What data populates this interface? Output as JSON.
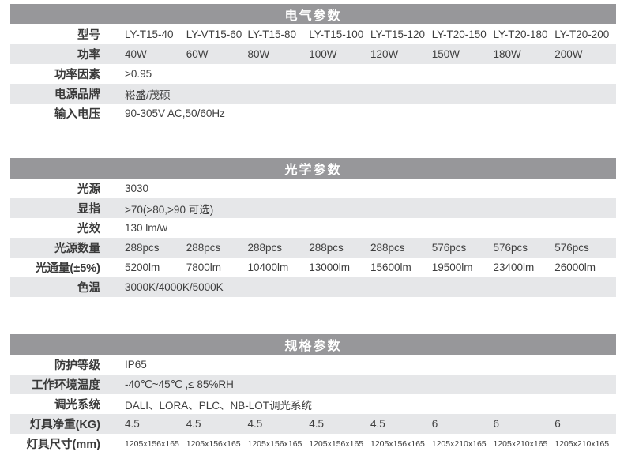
{
  "colors": {
    "section_header_bg": "#97979a",
    "section_header_text": "#ffffff",
    "stripe_bg": "#e6e7e9",
    "body_text": "#3e3e3e"
  },
  "sections": [
    {
      "title": "电气参数",
      "rows": [
        {
          "label": "型号",
          "values": [
            "LY-T15-40",
            "LY-VT15-60",
            "LY-T15-80",
            "LY-T15-100",
            "LY-T15-120",
            "LY-T20-150",
            "LY-T20-180",
            "LY-T20-200"
          ]
        },
        {
          "label": "功率",
          "values": [
            "40W",
            "60W",
            "80W",
            "100W",
            "120W",
            "150W",
            "180W",
            "200W"
          ]
        },
        {
          "label": "功率因素",
          "values": [
            ">0.95"
          ]
        },
        {
          "label": "电源品牌",
          "values": [
            "崧盛/茂硕"
          ]
        },
        {
          "label": "输入电压",
          "values": [
            "90-305V AC,50/60Hz"
          ]
        }
      ]
    },
    {
      "title": "光学参数",
      "rows": [
        {
          "label": "光源",
          "values": [
            "3030"
          ]
        },
        {
          "label": "显指",
          "values": [
            ">70(>80,>90 可选)"
          ]
        },
        {
          "label": "光效",
          "values": [
            "130 lm/w"
          ]
        },
        {
          "label": "光源数量",
          "values": [
            "288pcs",
            "288pcs",
            "288pcs",
            "288pcs",
            "288pcs",
            "576pcs",
            "576pcs",
            "576pcs"
          ]
        },
        {
          "label": "光通量(±5%)",
          "values": [
            "5200lm",
            "7800lm",
            "10400lm",
            "13000lm",
            "15600lm",
            "19500lm",
            "23400lm",
            "26000lm"
          ]
        },
        {
          "label": "色温",
          "values": [
            "3000K/4000K/5000K"
          ]
        }
      ]
    },
    {
      "title": "规格参数",
      "rows": [
        {
          "label": "防护等级",
          "values": [
            "IP65"
          ]
        },
        {
          "label": "工作环境温度",
          "values": [
            "-40℃~45℃ ,≤ 85%RH"
          ]
        },
        {
          "label": "调光系统",
          "values": [
            "DALI、LORA、PLC、NB-LOT调光系统"
          ]
        },
        {
          "label": "灯具净重(KG)",
          "values": [
            "4.5",
            "4.5",
            "4.5",
            "4.5",
            "4.5",
            "6",
            "6",
            "6"
          ]
        },
        {
          "label": "灯具尺寸(mm)",
          "values": [
            "1205x156x165",
            "1205x156x165",
            "1205x156x165",
            "1205x156x165",
            "1205x156x165",
            "1205x210x165",
            "1205x210x165",
            "1205x210x165"
          ],
          "small": true
        }
      ]
    }
  ]
}
